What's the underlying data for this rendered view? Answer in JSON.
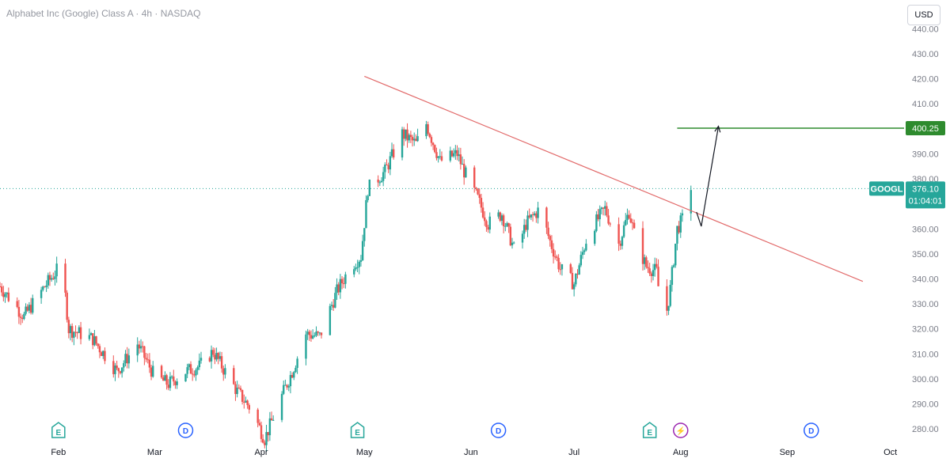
{
  "header": {
    "title": "Alphabet Inc (Google) Class A · 4h · NASDAQ",
    "currency_button": "USD"
  },
  "colors": {
    "up": "#26a69a",
    "down": "#ef5350",
    "trendline": "#e26b6b",
    "target": "#2e8b2e",
    "price_line": "#26a69a",
    "axis_text": "#787b86"
  },
  "chart_data": {
    "type": "candlestick",
    "symbol": "GOOGL",
    "interval": "4h",
    "y_ticks": [
      "280.00",
      "290.00",
      "300.00",
      "310.00",
      "320.00",
      "330.00",
      "340.00",
      "350.00",
      "360.00",
      "370.00",
      "380.00",
      "390.00",
      "400.00",
      "410.00",
      "420.00",
      "430.00",
      "440.00"
    ],
    "x_ticks": [
      "Feb",
      "Mar",
      "Apr",
      "May",
      "Jun",
      "Jul",
      "Aug",
      "Sep",
      "Oct"
    ],
    "ylim": [
      275,
      442
    ],
    "xlim": [
      "2025-01-15",
      "2025-10-05"
    ],
    "last_price": {
      "symbol": "GOOGL",
      "value": "376.10",
      "countdown": "01:04:01"
    },
    "target": {
      "label": "400.25",
      "value": 400.25,
      "start": "2025-07-31"
    },
    "trendline": {
      "start": {
        "date": "2025-05-01",
        "value": 421
      },
      "end": {
        "date": "2025-09-23",
        "value": 339
      }
    },
    "projection_arrow": {
      "from": {
        "date": "2025-08-07",
        "value": 361
      },
      "to": {
        "date": "2025-08-12",
        "value": 401
      }
    },
    "event_markers": [
      {
        "type": "earnings",
        "label": "E",
        "date": "2025-02-01"
      },
      {
        "type": "dividend",
        "label": "D",
        "date": "2025-03-10"
      },
      {
        "type": "earnings",
        "label": "E",
        "date": "2025-04-29"
      },
      {
        "type": "dividend",
        "label": "D",
        "date": "2025-06-09"
      },
      {
        "type": "earnings",
        "label": "E",
        "date": "2025-07-23"
      },
      {
        "type": "split",
        "label": "⚡",
        "date": "2025-08-01"
      },
      {
        "type": "dividend",
        "label": "D",
        "date": "2025-09-08"
      }
    ],
    "waypoints": [
      [
        "2025-01-15",
        337
      ],
      [
        "2025-01-22",
        325
      ],
      [
        "2025-01-28",
        337
      ],
      [
        "2025-02-02",
        346
      ],
      [
        "2025-02-04",
        320
      ],
      [
        "2025-02-11",
        316
      ],
      [
        "2025-02-18",
        303
      ],
      [
        "2025-02-24",
        314
      ],
      [
        "2025-03-01",
        301
      ],
      [
        "2025-03-05",
        298
      ],
      [
        "2025-03-10",
        303
      ],
      [
        "2025-03-14",
        305
      ],
      [
        "2025-03-18",
        311
      ],
      [
        "2025-03-21",
        304
      ],
      [
        "2025-03-25",
        295
      ],
      [
        "2025-03-29",
        288
      ],
      [
        "2025-04-02",
        276
      ],
      [
        "2025-04-06",
        290
      ],
      [
        "2025-04-10",
        303
      ],
      [
        "2025-04-14",
        318
      ],
      [
        "2025-04-18",
        317
      ],
      [
        "2025-04-23",
        335
      ],
      [
        "2025-04-27",
        345
      ],
      [
        "2025-04-30",
        349
      ],
      [
        "2025-05-02",
        376
      ],
      [
        "2025-05-07",
        383
      ],
      [
        "2025-05-12",
        398
      ],
      [
        "2025-05-16",
        394
      ],
      [
        "2025-05-19",
        402
      ],
      [
        "2025-05-23",
        387
      ],
      [
        "2025-05-28",
        390
      ],
      [
        "2025-05-30",
        383
      ],
      [
        "2025-06-03",
        372
      ],
      [
        "2025-06-06",
        362
      ],
      [
        "2025-06-10",
        366
      ],
      [
        "2025-06-14",
        350
      ],
      [
        "2025-06-17",
        362
      ],
      [
        "2025-06-21",
        368
      ],
      [
        "2025-06-24",
        355
      ],
      [
        "2025-06-27",
        344
      ],
      [
        "2025-07-01",
        338
      ],
      [
        "2025-07-05",
        358
      ],
      [
        "2025-07-10",
        368
      ],
      [
        "2025-07-14",
        354
      ],
      [
        "2025-07-17",
        367
      ],
      [
        "2025-07-19",
        355
      ],
      [
        "2025-07-22",
        345
      ],
      [
        "2025-07-25",
        343
      ],
      [
        "2025-07-27",
        319
      ],
      [
        "2025-07-29",
        336
      ],
      [
        "2025-07-31",
        360
      ],
      [
        "2025-08-02",
        365
      ],
      [
        "2025-08-04",
        377
      ]
    ]
  }
}
